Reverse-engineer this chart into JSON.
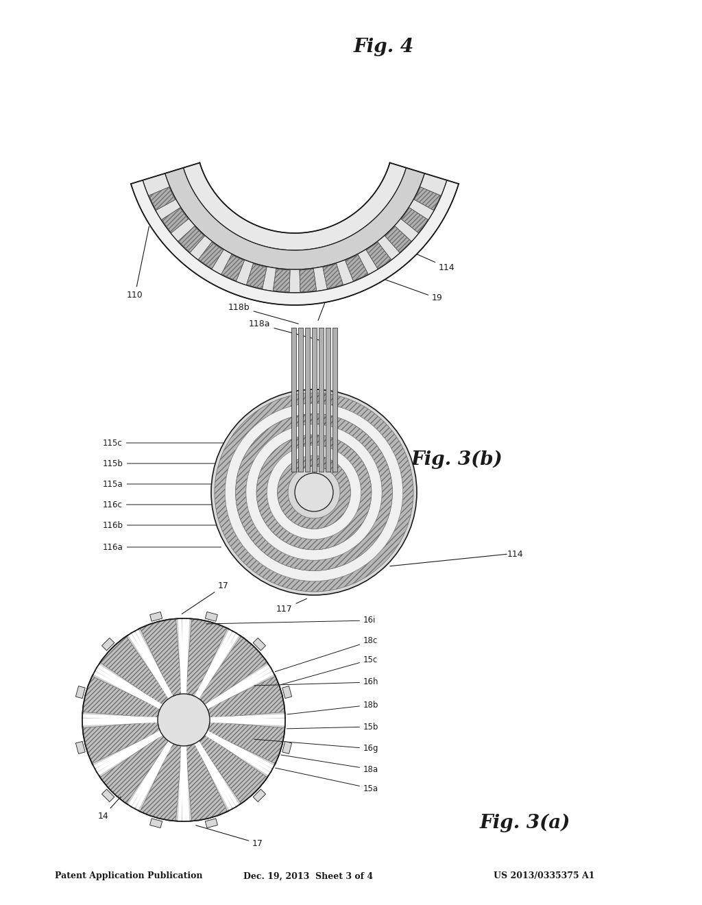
{
  "bg_color": "#ffffff",
  "header_left": "Patent Application Publication",
  "header_mid": "Dec. 19, 2013  Sheet 3 of 4",
  "header_right": "US 2013/0335375 A1",
  "fig3a_label": "Fig. 3(a)",
  "fig3b_label": "Fig. 3(b)",
  "fig4_label": "Fig. 4",
  "line_color": "#1a1a1a",
  "gray_sector": "#c8c8c8",
  "gray_ring_dark": "#b8b8b8",
  "gray_ring_light": "#e8e8e8",
  "gray_center": "#d8d8d8",
  "white": "#ffffff"
}
